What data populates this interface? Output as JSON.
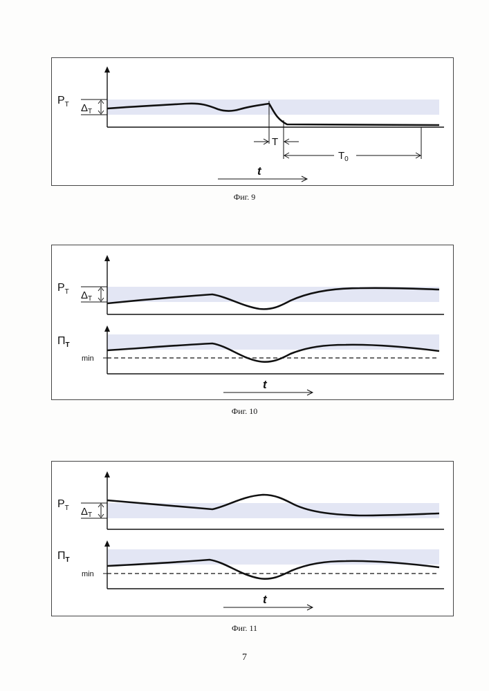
{
  "figures": [
    {
      "caption": "Фиг. 9",
      "ylabel_main": "P",
      "ylabel_sub": "T",
      "delta_main": "Δ",
      "delta_sub": "T",
      "T_label": "T",
      "T0_main": "T",
      "T0_sub": "0",
      "t_label": "t"
    },
    {
      "caption": "Фиг. 10",
      "upper_ylabel_main": "P",
      "upper_ylabel_sub": "T",
      "delta_main": "Δ",
      "delta_sub": "T",
      "lower_ylabel_main": "П",
      "lower_ylabel_sub": "T",
      "min_label": "min",
      "t_label": "t"
    },
    {
      "caption": "Фиг. 11",
      "upper_ylabel_main": "P",
      "upper_ylabel_sub": "T",
      "delta_main": "Δ",
      "delta_sub": "T",
      "lower_ylabel_main": "П",
      "lower_ylabel_sub": "T",
      "min_label": "min",
      "t_label": "t"
    }
  ],
  "page_number": "7",
  "colors": {
    "band": "#e3e6f4",
    "line": "#111111"
  }
}
